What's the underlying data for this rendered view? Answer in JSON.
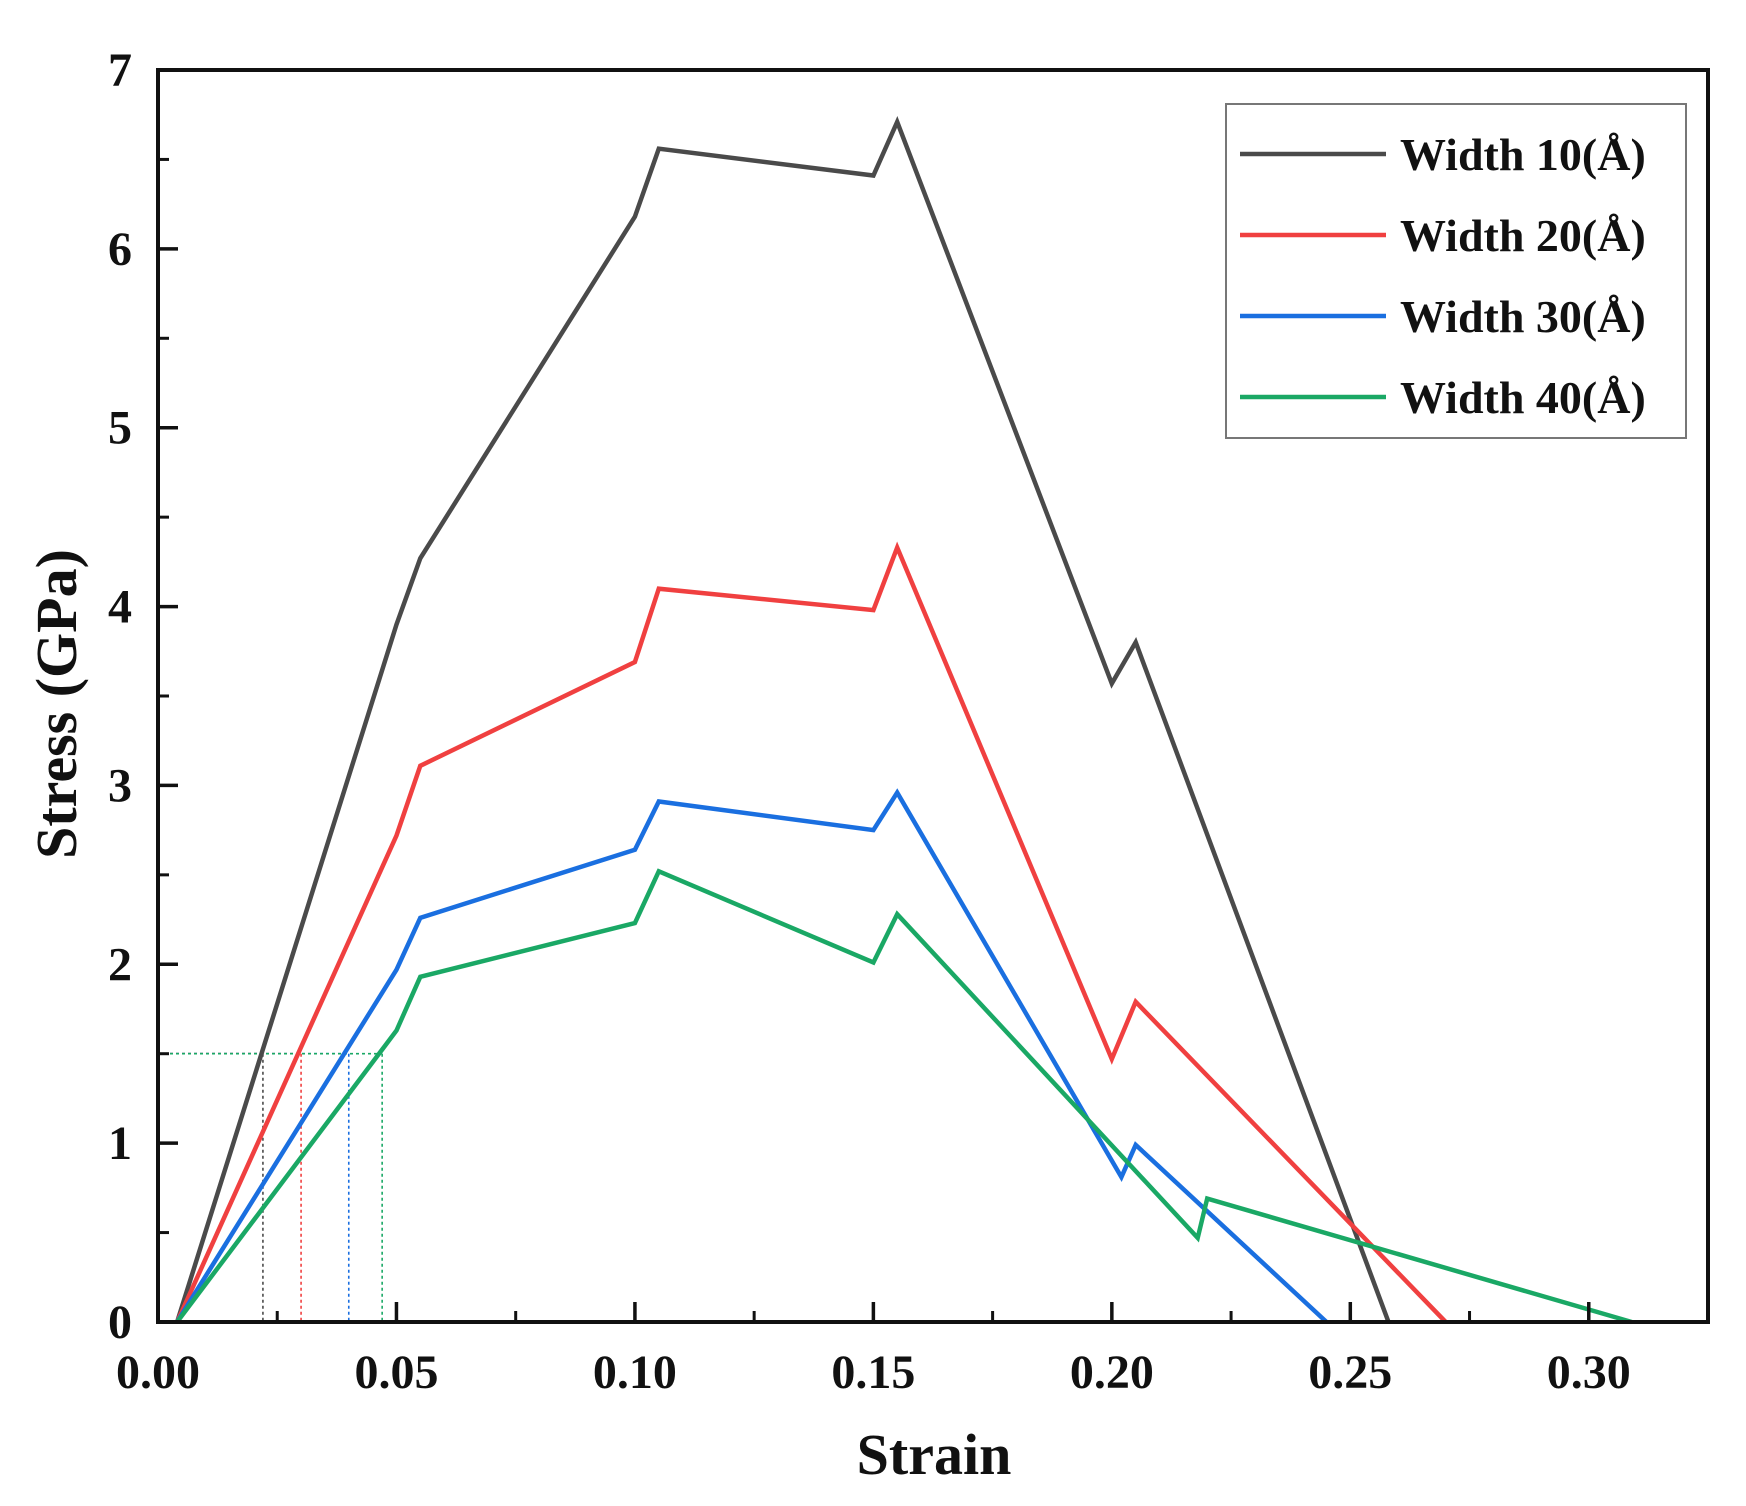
{
  "chart_data": {
    "type": "line",
    "title": "",
    "xlabel": "Strain",
    "ylabel": "Stress (GPa)",
    "xlim": [
      0.0,
      0.325
    ],
    "ylim": [
      0,
      7
    ],
    "x_ticks": [
      0.0,
      0.05,
      0.1,
      0.15,
      0.2,
      0.25,
      0.3
    ],
    "x_tick_labels": [
      "0.00",
      "0.05",
      "0.10",
      "0.15",
      "0.20",
      "0.25",
      "0.30"
    ],
    "y_ticks": [
      0,
      1,
      2,
      3,
      4,
      5,
      6,
      7
    ],
    "y_tick_labels": [
      "0",
      "1",
      "2",
      "3",
      "4",
      "5",
      "6",
      "7"
    ],
    "grid": false,
    "legend_position": "top-right",
    "series": [
      {
        "name": "Width 10(Å)",
        "color": "#4a4a4a",
        "x": [
          0.004,
          0.05,
          0.055,
          0.1,
          0.105,
          0.15,
          0.155,
          0.2,
          0.205,
          0.258
        ],
        "y": [
          0.0,
          3.9,
          4.27,
          6.18,
          6.56,
          6.41,
          6.71,
          3.57,
          3.8,
          0.0
        ]
      },
      {
        "name": "Width 20(Å)",
        "color": "#f04040",
        "x": [
          0.004,
          0.05,
          0.055,
          0.1,
          0.105,
          0.15,
          0.155,
          0.2,
          0.205,
          0.27
        ],
        "y": [
          0.0,
          2.72,
          3.11,
          3.69,
          4.1,
          3.98,
          4.33,
          1.47,
          1.79,
          0.0
        ]
      },
      {
        "name": "Width 30(Å)",
        "color": "#1a6fe0",
        "x": [
          0.004,
          0.05,
          0.055,
          0.1,
          0.105,
          0.15,
          0.155,
          0.202,
          0.205,
          0.245
        ],
        "y": [
          0.0,
          1.97,
          2.26,
          2.64,
          2.91,
          2.75,
          2.96,
          0.81,
          0.99,
          0.0
        ]
      },
      {
        "name": "Width 40(Å)",
        "color": "#1aa865",
        "x": [
          0.004,
          0.05,
          0.055,
          0.1,
          0.105,
          0.15,
          0.155,
          0.218,
          0.22,
          0.309
        ],
        "y": [
          0.0,
          1.63,
          1.93,
          2.23,
          2.52,
          2.01,
          2.28,
          0.47,
          0.69,
          0.0
        ]
      }
    ],
    "annotations": {
      "dotted_guides": {
        "stress": 1.5,
        "strains": [
          0.022,
          0.03,
          0.04,
          0.047
        ],
        "colors": [
          "#4a4a4a",
          "#f04040",
          "#1a6fe0",
          "#1aa865"
        ]
      }
    }
  }
}
